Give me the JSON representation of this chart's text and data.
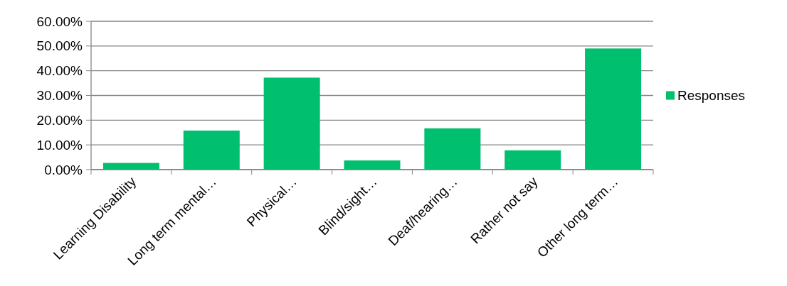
{
  "chart_data": {
    "type": "bar",
    "categories": [
      "Learning Disability",
      "Long term mental…",
      "Physical…",
      "Blind/sight…",
      "Deaf/hearing…",
      "Rather not say",
      "Other long term…"
    ],
    "series": [
      {
        "name": "Responses",
        "color": "#00bf6f",
        "values": [
          2.7,
          15.8,
          37.2,
          3.7,
          16.7,
          7.8,
          49.0
        ]
      }
    ],
    "ylim": [
      0,
      60
    ],
    "yticks": [
      {
        "value": 0,
        "label": "0.00%"
      },
      {
        "value": 10,
        "label": "10.00%"
      },
      {
        "value": 20,
        "label": "20.00%"
      },
      {
        "value": 30,
        "label": "30.00%"
      },
      {
        "value": 40,
        "label": "40.00%"
      },
      {
        "value": 50,
        "label": "50.00%"
      },
      {
        "value": 60,
        "label": "60.00%"
      }
    ],
    "grid": "y",
    "legend": "right"
  }
}
